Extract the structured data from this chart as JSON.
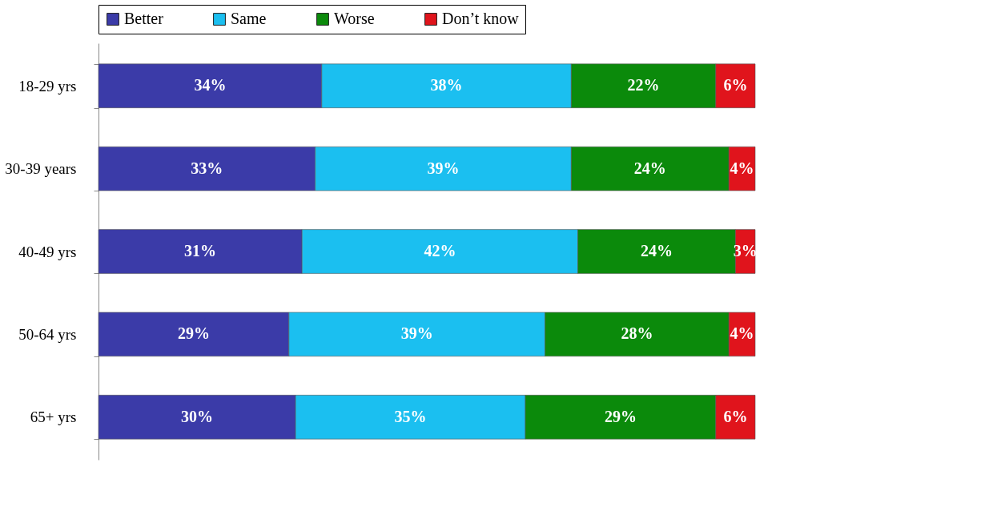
{
  "chart_data": {
    "type": "bar",
    "orientation": "horizontal",
    "stacked": true,
    "tick_labels": "y",
    "legend": "top",
    "categories": [
      "18-29 yrs",
      "30-39 years",
      "40-49 yrs",
      "50-64 yrs",
      "65+ yrs"
    ],
    "series": [
      {
        "name": "Better",
        "color": "#3b3ba8",
        "values": [
          34,
          33,
          31,
          29,
          30
        ],
        "value_labels": [
          "34%",
          "33%",
          "31%",
          "29%",
          "30%"
        ]
      },
      {
        "name": "Same",
        "color": "#1bbff0",
        "values": [
          38,
          39,
          42,
          39,
          35
        ],
        "value_labels": [
          "38%",
          "39%",
          "42%",
          "39%",
          "35%"
        ]
      },
      {
        "name": "Worse",
        "color": "#0b8a0b",
        "values": [
          22,
          24,
          24,
          28,
          29
        ],
        "value_labels": [
          "22%",
          "24%",
          "24%",
          "28%",
          "29%"
        ]
      },
      {
        "name": "Don’t know",
        "color": "#e0141c",
        "values": [
          6,
          4,
          3,
          4,
          6
        ],
        "value_labels": [
          "6%",
          "4%",
          "3%",
          "4%",
          "6%"
        ]
      }
    ]
  }
}
